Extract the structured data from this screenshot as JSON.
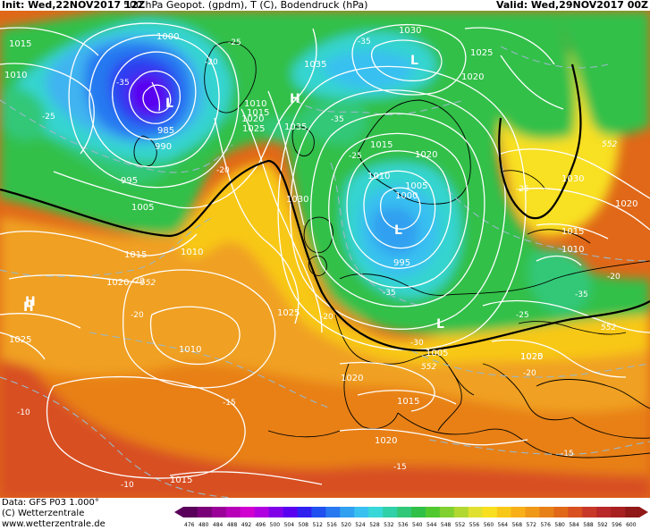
{
  "header": {
    "init": "Init: Wed,22NOV2017 12Z",
    "title": "500 hPa Geopot. (gpdm), T (C), Bodendruck (hPa)",
    "valid": "Valid: Wed,29NOV2017 00Z"
  },
  "footer": {
    "data_line": "Data: GFS P03 1.000°",
    "copyright": "(C) Wetterzentrale",
    "website": "www.wetterzentrale.de"
  },
  "colors": {
    "purple_deep": "#5a00a8",
    "blue": "#2f3cf0",
    "light_blue": "#3fb4f0",
    "cyan": "#36d4d0",
    "green": "#2ec85a",
    "yellow": "#f0e040",
    "orange": "#f0a020",
    "dark_orange": "#e06818",
    "red": "#c83020"
  },
  "scale": {
    "values": [
      "476",
      "480",
      "484",
      "488",
      "492",
      "496",
      "500",
      "504",
      "508",
      "512",
      "516",
      "520",
      "524",
      "528",
      "532",
      "536",
      "540",
      "544",
      "548",
      "552",
      "556",
      "560",
      "564",
      "568",
      "572",
      "576",
      "580",
      "584",
      "588",
      "592",
      "596",
      "600"
    ],
    "colors": [
      "#5a005a",
      "#7a0078",
      "#9a0098",
      "#b800b8",
      "#d000d0",
      "#b000e0",
      "#8000e8",
      "#5a00f0",
      "#3020f0",
      "#2050f0",
      "#2878f0",
      "#30a0f0",
      "#38c0f0",
      "#38d8d8",
      "#30d0a8",
      "#30c878",
      "#30c048",
      "#50c830",
      "#80d030",
      "#b0d830",
      "#e0e030",
      "#f8e020",
      "#f8c818",
      "#f8b018",
      "#f09818",
      "#e88018",
      "#e06818",
      "#d85020",
      "#c83828",
      "#b82828",
      "#a82020",
      "#901818"
    ]
  },
  "pressure_labels": [
    {
      "text": "1015",
      "role": "isobar"
    },
    {
      "text": "1010",
      "role": "isobar"
    },
    {
      "text": "1000",
      "role": "isobar"
    },
    {
      "text": "995",
      "role": "isobar"
    },
    {
      "text": "985",
      "role": "isobar"
    },
    {
      "text": "990",
      "role": "isobar"
    },
    {
      "text": "1005",
      "role": "isobar"
    },
    {
      "text": "1015",
      "role": "isobar"
    },
    {
      "text": "1010",
      "role": "isobar"
    },
    {
      "text": "1020",
      "role": "isobar"
    },
    {
      "text": "1035",
      "role": "isobar"
    },
    {
      "text": "1010",
      "role": "isobar"
    },
    {
      "text": "1015",
      "role": "isobar"
    },
    {
      "text": "1020",
      "role": "isobar"
    },
    {
      "text": "1025",
      "role": "isobar"
    },
    {
      "text": "1035",
      "role": "isobar"
    },
    {
      "text": "1030",
      "role": "isobar"
    },
    {
      "text": "1030",
      "role": "isobar"
    },
    {
      "text": "1025",
      "role": "isobar"
    },
    {
      "text": "1020",
      "role": "isobar"
    },
    {
      "text": "1015",
      "role": "isobar"
    },
    {
      "text": "1020",
      "role": "isobar"
    },
    {
      "text": "1010",
      "role": "isobar"
    },
    {
      "text": "1005",
      "role": "isobar"
    },
    {
      "text": "1000",
      "role": "isobar"
    },
    {
      "text": "995",
      "role": "isobar"
    },
    {
      "text": "1030",
      "role": "isobar"
    },
    {
      "text": "1020",
      "role": "isobar"
    },
    {
      "text": "1015",
      "role": "isobar"
    },
    {
      "text": "1010",
      "role": "isobar"
    },
    {
      "text": "1025",
      "role": "isobar"
    },
    {
      "text": "1025",
      "role": "isobar"
    },
    {
      "text": "1010",
      "role": "isobar"
    },
    {
      "text": "1005",
      "role": "isobar"
    },
    {
      "text": "1020",
      "role": "isobar"
    },
    {
      "text": "1015",
      "role": "isobar"
    },
    {
      "text": "1020",
      "role": "isobar"
    },
    {
      "text": "1020",
      "role": "isobar"
    },
    {
      "text": "1015",
      "role": "isobar"
    },
    {
      "text": "1025",
      "role": "isobar"
    }
  ],
  "temperature_labels": [
    "-35",
    "-25",
    "-20",
    "-25",
    "-35",
    "-35",
    "-25",
    "-20",
    "-35",
    "-30",
    "-20",
    "-20",
    "-20",
    "-25",
    "-25",
    "-20",
    "-35",
    "-20",
    "-15",
    "-10",
    "-10",
    "-15",
    "-15"
  ],
  "geopotential_labels": [
    "552",
    "552",
    "552",
    "552"
  ],
  "pressure_centers": [
    "H",
    "L",
    "L",
    "L",
    "H",
    "H",
    "L"
  ]
}
